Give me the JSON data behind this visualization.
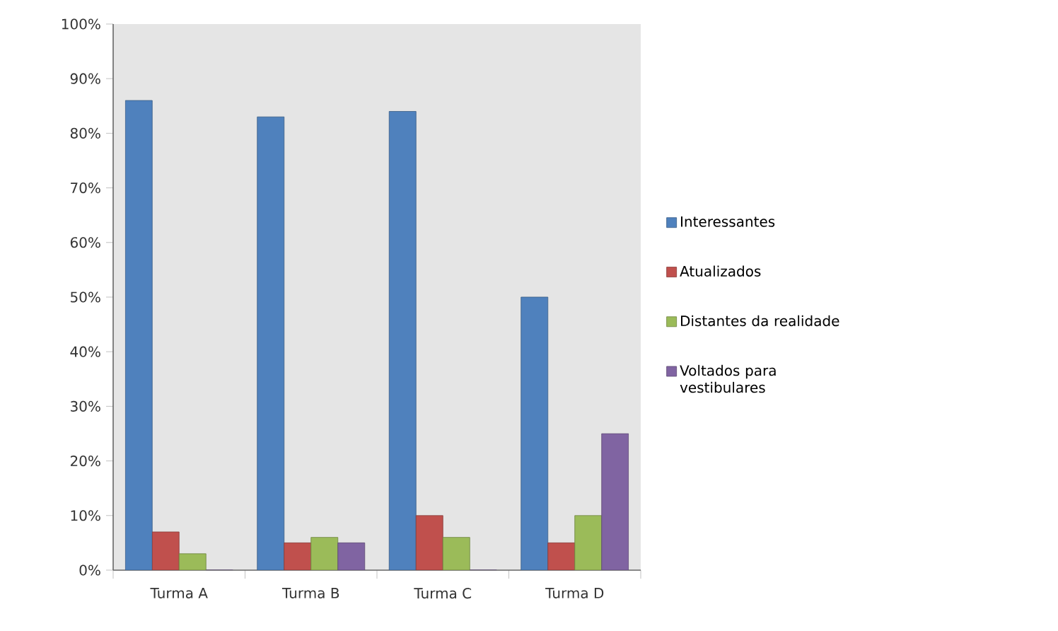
{
  "chart_data": {
    "type": "bar",
    "categories": [
      "Turma A",
      "Turma B",
      "Turma C",
      "Turma D"
    ],
    "series": [
      {
        "name": "Interessantes",
        "color": "#4f81bd",
        "values": [
          86,
          83,
          84,
          50
        ]
      },
      {
        "name": "Atualizados",
        "color": "#c0504d",
        "values": [
          7,
          5,
          10,
          5
        ]
      },
      {
        "name": "Distantes da realidade",
        "color": "#9bbb59",
        "values": [
          3,
          6,
          6,
          10
        ]
      },
      {
        "name": "Voltados para vestibulares",
        "color": "#8064a2",
        "values": [
          0,
          5,
          0,
          25
        ]
      }
    ],
    "ylim": [
      0,
      100
    ],
    "yticks": [
      {
        "value": 0,
        "label": "0%"
      },
      {
        "value": 10,
        "label": "10%"
      },
      {
        "value": 20,
        "label": "20%"
      },
      {
        "value": 30,
        "label": "30%"
      },
      {
        "value": 40,
        "label": "40%"
      },
      {
        "value": 50,
        "label": "50%"
      },
      {
        "value": 60,
        "label": "60%"
      },
      {
        "value": 70,
        "label": "70%"
      },
      {
        "value": 80,
        "label": "80%"
      },
      {
        "value": 90,
        "label": "90%"
      },
      {
        "value": 100,
        "label": "100%"
      }
    ],
    "grid": false,
    "legend": "right"
  }
}
